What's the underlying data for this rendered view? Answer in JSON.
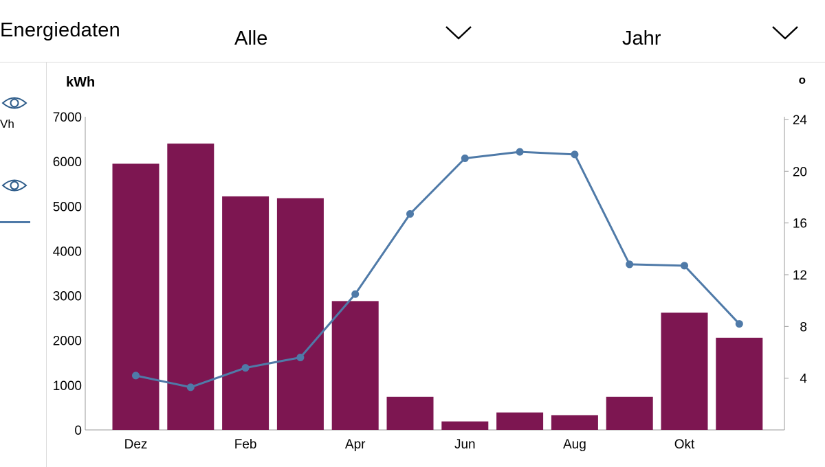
{
  "header": {
    "title": "Energiedaten",
    "filter_value": "Alle",
    "period_value": "Jahr"
  },
  "sidebar": {
    "series1_partial_label": "Vh",
    "series1_icon": "eye-icon",
    "series2_icon": "eye-icon"
  },
  "colors": {
    "bar": "#7d1651",
    "line": "#4f7aa8",
    "axis": "#999999"
  },
  "chart_data": {
    "type": "bar",
    "title": "",
    "ylabel": "kWh",
    "y2label": "o",
    "ylim": [
      0,
      7000
    ],
    "y2lim": [
      0,
      24
    ],
    "y_ticks": [
      0,
      1000,
      2000,
      3000,
      4000,
      5000,
      6000,
      7000
    ],
    "y2_ticks": [
      4,
      8,
      12,
      16,
      20,
      24
    ],
    "x_tick_labels": [
      "Dez",
      "",
      "Feb",
      "",
      "Apr",
      "",
      "Jun",
      "",
      "Aug",
      "",
      "Okt",
      ""
    ],
    "series": [
      {
        "name": "kWh",
        "type": "bar",
        "axis": "left",
        "values": [
          5950,
          6400,
          5220,
          5180,
          2880,
          740,
          190,
          390,
          330,
          740,
          2620,
          2060
        ]
      },
      {
        "name": "line",
        "type": "line",
        "axis": "right",
        "values": [
          4.2,
          3.3,
          4.8,
          5.6,
          10.5,
          16.7,
          21.0,
          21.5,
          21.3,
          12.8,
          12.7,
          8.2
        ]
      }
    ]
  }
}
